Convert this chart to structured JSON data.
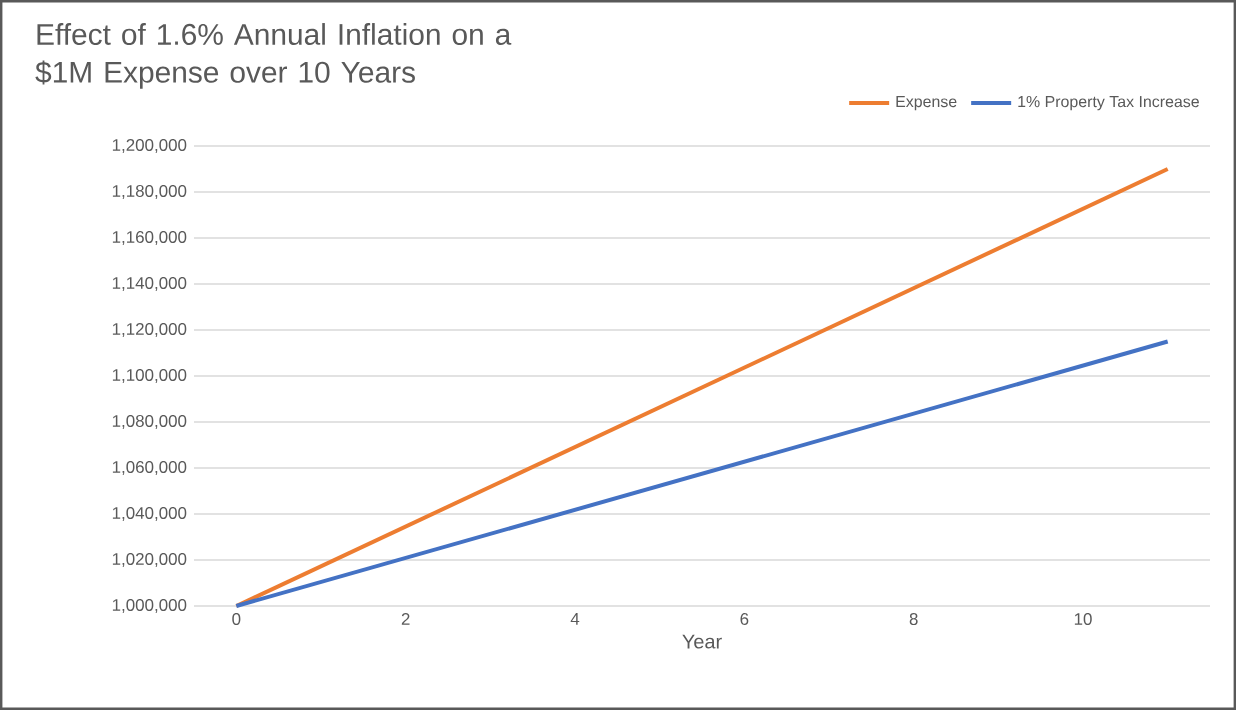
{
  "chart_data": {
    "type": "line",
    "title": "Effect of 1.6% Annual Inflation on a $1M Expense over 10 Years",
    "xlabel": "Year",
    "x": [
      0,
      11
    ],
    "series": [
      {
        "name": "Expense",
        "color": "#ed7d31",
        "values": [
          1000000,
          1190000
        ]
      },
      {
        "name": "1% Property Tax Increase",
        "color": "#4472c4",
        "values": [
          1000000,
          1115000
        ]
      }
    ],
    "xlim": [
      -0.5,
      11.5
    ],
    "xticks": [
      0,
      2,
      4,
      6,
      8,
      10
    ],
    "ylim": [
      1000000,
      1200000
    ],
    "yticks": [
      {
        "value": 1000000,
        "label": "1,000,000"
      },
      {
        "value": 1020000,
        "label": "1,020,000"
      },
      {
        "value": 1040000,
        "label": "1,040,000"
      },
      {
        "value": 1060000,
        "label": "1,060,000"
      },
      {
        "value": 1080000,
        "label": "1,080,000"
      },
      {
        "value": 1100000,
        "label": "1,100,000"
      },
      {
        "value": 1120000,
        "label": "1,120,000"
      },
      {
        "value": 1140000,
        "label": "1,140,000"
      },
      {
        "value": 1160000,
        "label": "1,160,000"
      },
      {
        "value": 1180000,
        "label": "1,180,000"
      },
      {
        "value": 1200000,
        "label": "1,200,000"
      }
    ],
    "grid": "y",
    "legend": "top right",
    "line_style": "solid"
  }
}
